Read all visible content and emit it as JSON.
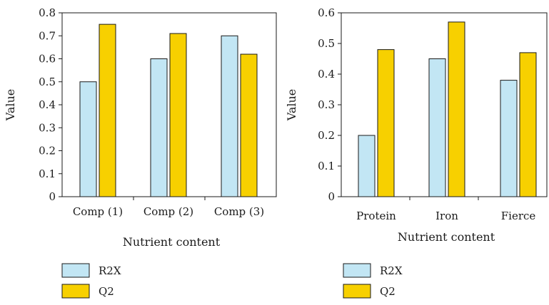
{
  "chart_data": [
    {
      "type": "bar",
      "categories": [
        "Comp (1)",
        "Comp (2)",
        "Comp (3)"
      ],
      "series": [
        {
          "name": "R2X",
          "values": [
            0.5,
            0.6,
            0.7
          ],
          "color": "#c2e6f4"
        },
        {
          "name": "Q2",
          "values": [
            0.75,
            0.71,
            0.62
          ],
          "color": "#f7d000"
        }
      ],
      "xlabel": "Nutrient content",
      "ylabel": "Value",
      "ylim": [
        0,
        0.8
      ],
      "yticks": [
        0,
        0.1,
        0.2,
        0.3,
        0.4,
        0.5,
        0.6,
        0.7,
        0.8
      ],
      "ytick_labels": [
        "0",
        "0.1",
        "0.2",
        "0.3",
        "0.4",
        "0.5",
        "0.6",
        "0.7",
        "0.8"
      ],
      "grid": false,
      "legend_position": "bottom-left"
    },
    {
      "type": "bar",
      "categories": [
        "Protein",
        "Iron",
        "Fierce"
      ],
      "series": [
        {
          "name": "R2X",
          "values": [
            0.2,
            0.45,
            0.38
          ],
          "color": "#c2e6f4"
        },
        {
          "name": "Q2",
          "values": [
            0.48,
            0.57,
            0.47
          ],
          "color": "#f7d000"
        }
      ],
      "xlabel": "Nutrient content",
      "ylabel": "Value",
      "ylim": [
        0,
        0.6
      ],
      "yticks": [
        0,
        0.1,
        0.2,
        0.3,
        0.4,
        0.5,
        0.6
      ],
      "ytick_labels": [
        "0",
        "0.1",
        "0.2",
        "0.3",
        "0.4",
        "0.5",
        "0.6"
      ],
      "grid": false,
      "legend_position": "bottom-left"
    }
  ]
}
